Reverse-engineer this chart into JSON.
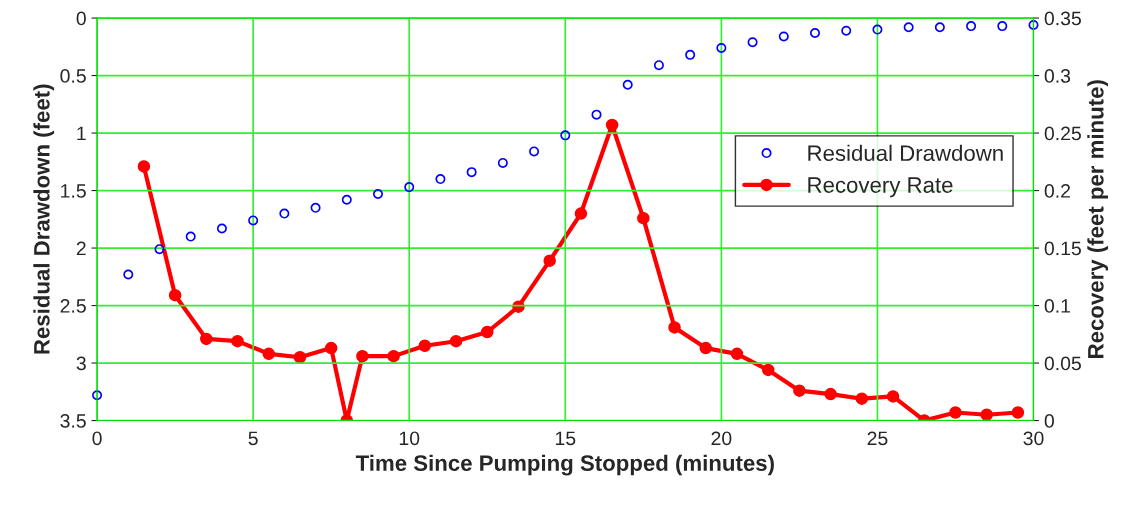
{
  "chart_data": {
    "type": "line",
    "xlabel": "Time Since Pumping Stopped (minutes)",
    "ylabel": "Residual Drawdown (feet)",
    "y2label": "Recovery (feet per minute)",
    "xlim": [
      0,
      30
    ],
    "xticks": [
      0,
      5,
      10,
      15,
      20,
      25,
      30
    ],
    "ylim": [
      3.5,
      0
    ],
    "yticks": [
      0,
      0.5,
      1,
      1.5,
      2,
      2.5,
      3,
      3.5
    ],
    "y2lim": [
      0,
      0.35
    ],
    "y2ticks": [
      0,
      0.05,
      0.1,
      0.15,
      0.2,
      0.25,
      0.3,
      0.35
    ],
    "grid": true,
    "legend": "right",
    "series": [
      {
        "name": "Residual Drawdown",
        "type": "scatter",
        "color": "#0000ff",
        "marker": "circle",
        "x": [
          0,
          1,
          2,
          3,
          4,
          5,
          6,
          7,
          8,
          9,
          10,
          11,
          12,
          13,
          14,
          15,
          16,
          17,
          18,
          19,
          20,
          21,
          22,
          23,
          24,
          25,
          26,
          27,
          28,
          29,
          30
        ],
        "values": [
          3.28,
          2.23,
          2.01,
          1.9,
          1.83,
          1.76,
          1.7,
          1.65,
          1.58,
          1.53,
          1.47,
          1.4,
          1.34,
          1.26,
          1.16,
          1.02,
          0.84,
          0.58,
          0.41,
          0.32,
          0.26,
          0.21,
          0.16,
          0.13,
          0.11,
          0.1,
          0.08,
          0.08,
          0.07,
          0.07,
          0.06
        ]
      },
      {
        "name": "Recovery Rate",
        "axis": "y2",
        "color": "#ff0000",
        "marker": "circle",
        "line_style": "solid",
        "x": [
          1.5,
          2.5,
          3.5,
          4.5,
          5.5,
          6.5,
          7.5,
          8,
          8.5,
          9.5,
          10.5,
          11.5,
          12.5,
          13.5,
          14.5,
          15.5,
          16.5,
          17.5,
          18.5,
          19.5,
          20.5,
          21.5,
          22.5,
          23.5,
          24.5,
          25.5,
          26.5,
          27.5,
          28.5,
          29.5
        ],
        "values": [
          0.221,
          0.109,
          0.071,
          0.069,
          0.058,
          0.055,
          0.063,
          0,
          0.056,
          0.056,
          0.065,
          0.069,
          0.077,
          0.099,
          0.139,
          0.18,
          0.257,
          0.176,
          0.081,
          0.063,
          0.058,
          0.044,
          0.026,
          0.023,
          0.019,
          0.021,
          0,
          0.007,
          0.005,
          0.007
        ]
      }
    ]
  }
}
